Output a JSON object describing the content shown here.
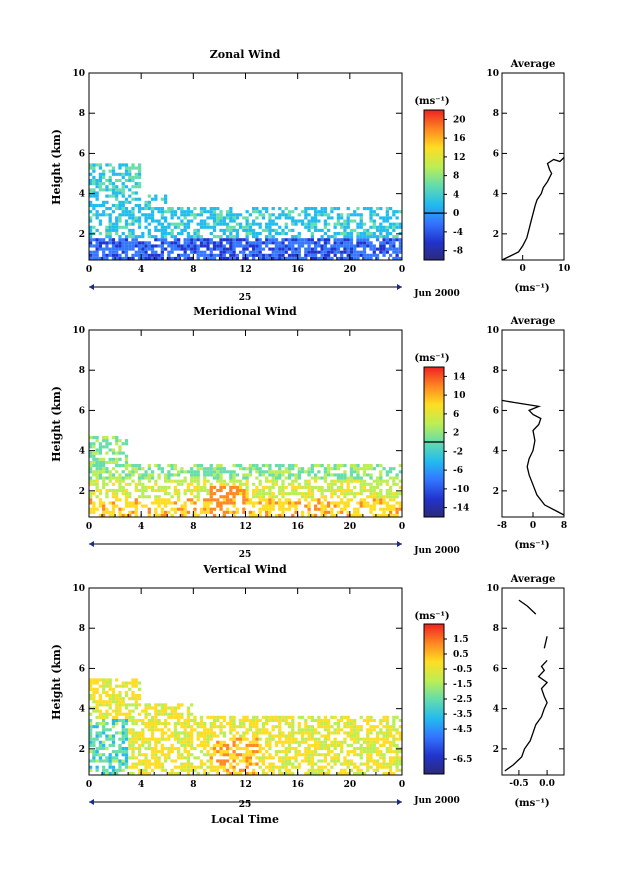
{
  "common": {
    "ylabel": "Height (km)",
    "x_ticks": [
      "0",
      "4",
      "8",
      "12",
      "16",
      "20",
      "0"
    ],
    "y_ticks": [
      "2",
      "4",
      "6",
      "8",
      "10"
    ],
    "day_label": "25",
    "date_label": "Jun 2000",
    "units": "(ms⁻¹)",
    "average_title": "Average",
    "xlabel_bottom": "Local Time"
  },
  "chart_data": [
    {
      "type": "heatmap",
      "title": "Zonal Wind",
      "xlabel": "",
      "ylabel": "Height (km)",
      "xlim": [
        0,
        24
      ],
      "ylim": [
        0.7,
        10
      ],
      "colorbar": {
        "ticks": [
          "-8",
          "-4",
          "0",
          "4",
          "8",
          "12",
          "16",
          "20"
        ],
        "range": [
          -10,
          22
        ],
        "zero_line": 0
      },
      "average_profile": {
        "xlim": [
          -5,
          10
        ],
        "x_ticks": [
          "0",
          "10"
        ],
        "y_ticks": [
          "2",
          "4",
          "6",
          "8",
          "10"
        ],
        "points": [
          [
            -5,
            0.7
          ],
          [
            -3,
            0.9
          ],
          [
            -1,
            1.1
          ],
          [
            0,
            1.4
          ],
          [
            1,
            1.8
          ],
          [
            1.5,
            2.2
          ],
          [
            2,
            2.6
          ],
          [
            2.5,
            3.0
          ],
          [
            3,
            3.4
          ],
          [
            3.5,
            3.7
          ],
          [
            4.5,
            4.0
          ],
          [
            5,
            4.3
          ],
          [
            6,
            4.6
          ],
          [
            6.5,
            4.8
          ],
          [
            7,
            5.0
          ],
          [
            6.5,
            5.2
          ],
          [
            6,
            5.5
          ],
          [
            7.5,
            5.7
          ],
          [
            9,
            5.6
          ],
          [
            10,
            5.8
          ]
        ]
      }
    },
    {
      "type": "heatmap",
      "title": "Meridional Wind",
      "xlabel": "",
      "ylabel": "Height (km)",
      "xlim": [
        0,
        24
      ],
      "ylim": [
        0.7,
        10
      ],
      "colorbar": {
        "ticks": [
          "-14",
          "-10",
          "-6",
          "-2",
          "2",
          "6",
          "10",
          "14"
        ],
        "range": [
          -16,
          16
        ],
        "zero_line": 0
      },
      "average_profile": {
        "xlim": [
          -8,
          8
        ],
        "x_ticks": [
          "-8",
          "0",
          "8"
        ],
        "y_ticks": [
          "2",
          "4",
          "6",
          "8",
          "10"
        ],
        "points": [
          [
            8,
            0.8
          ],
          [
            6,
            1.0
          ],
          [
            3,
            1.3
          ],
          [
            1,
            1.8
          ],
          [
            0,
            2.3
          ],
          [
            -1,
            2.8
          ],
          [
            -1.5,
            3.2
          ],
          [
            -1,
            3.6
          ],
          [
            0,
            4.0
          ],
          [
            0.5,
            4.5
          ],
          [
            0,
            5.0
          ],
          [
            1.5,
            5.3
          ],
          [
            2,
            5.6
          ],
          [
            0,
            5.8
          ],
          [
            -1,
            6.0
          ],
          [
            1.5,
            6.2
          ],
          [
            -5,
            6.4
          ],
          [
            -8,
            6.5
          ]
        ]
      }
    },
    {
      "type": "heatmap",
      "title": "Vertical Wind",
      "xlabel": "Local Time",
      "ylabel": "Height (km)",
      "xlim": [
        0,
        24
      ],
      "ylim": [
        0.7,
        10
      ],
      "colorbar": {
        "ticks": [
          "-6.5",
          "-4.5",
          "-3.5",
          "-2.5",
          "-1.5",
          "-0.5",
          "0.5",
          "1.5"
        ],
        "range": [
          -7.5,
          2.5
        ],
        "zero_line": null
      },
      "average_profile": {
        "xlim": [
          -0.8,
          0.3
        ],
        "x_ticks": [
          "-0.5",
          "0.0"
        ],
        "y_ticks": [
          "2",
          "4",
          "6",
          "8",
          "10"
        ],
        "points": [
          [
            -0.75,
            0.9
          ],
          [
            -0.6,
            1.2
          ],
          [
            -0.45,
            1.6
          ],
          [
            -0.4,
            2.0
          ],
          [
            -0.3,
            2.4
          ],
          [
            -0.25,
            2.8
          ],
          [
            -0.2,
            3.2
          ],
          [
            -0.1,
            3.6
          ],
          [
            -0.05,
            4.0
          ],
          [
            0.0,
            4.3
          ],
          [
            -0.05,
            4.6
          ],
          [
            -0.1,
            5.0
          ],
          [
            0.0,
            5.3
          ],
          [
            -0.15,
            5.6
          ],
          [
            -0.05,
            5.9
          ],
          [
            -0.1,
            6.1
          ],
          [
            0.0,
            6.4
          ]
        ],
        "extra_segments": [
          [
            [
              -0.05,
              7.0
            ],
            [
              0.0,
              7.6
            ]
          ],
          [
            [
              -0.5,
              9.4
            ],
            [
              -0.35,
              9.1
            ],
            [
              -0.2,
              8.7
            ]
          ]
        ]
      }
    }
  ]
}
